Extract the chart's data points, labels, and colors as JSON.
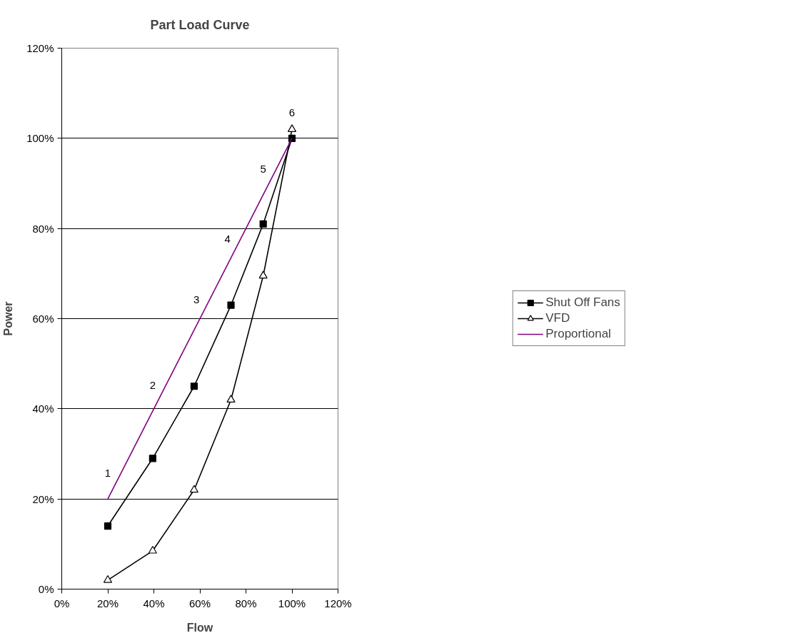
{
  "chart_data": {
    "type": "line",
    "title": "Part Load Curve",
    "xlabel": "Flow",
    "ylabel": "Power",
    "xlim": [
      0,
      120
    ],
    "ylim": [
      0,
      120
    ],
    "xticks": [
      {
        "value": 0,
        "label": "0%"
      },
      {
        "value": 20,
        "label": "20%"
      },
      {
        "value": 40,
        "label": "40%"
      },
      {
        "value": 60,
        "label": "60%"
      },
      {
        "value": 80,
        "label": "80%"
      },
      {
        "value": 100,
        "label": "100%"
      },
      {
        "value": 120,
        "label": "120%"
      }
    ],
    "yticks": [
      {
        "value": 0,
        "label": "0%"
      },
      {
        "value": 20,
        "label": "20%"
      },
      {
        "value": 40,
        "label": "40%"
      },
      {
        "value": 60,
        "label": "60%"
      },
      {
        "value": 80,
        "label": "80%"
      },
      {
        "value": 100,
        "label": "100%"
      },
      {
        "value": 120,
        "label": "120%"
      }
    ],
    "grid": "y",
    "legend": "right",
    "series": [
      {
        "name": "Shut Off Fans",
        "color": "#000000",
        "marker": "square",
        "x": [
          20,
          39.5,
          57.5,
          73.5,
          87.5,
          100
        ],
        "values": [
          14,
          29,
          45,
          63,
          81,
          100
        ]
      },
      {
        "name": "VFD",
        "color": "#000000",
        "marker": "triangle",
        "x": [
          20,
          39.5,
          57.5,
          73.5,
          87.5,
          100
        ],
        "values": [
          2,
          8.5,
          22,
          42,
          69.5,
          102
        ]
      },
      {
        "name": "Proportional",
        "color": "#800080",
        "marker": "none",
        "x": [
          20,
          100
        ],
        "values": [
          20,
          100
        ]
      }
    ],
    "annotations": [
      {
        "text": "1",
        "x": 20,
        "y": 20
      },
      {
        "text": "2",
        "x": 39.5,
        "y": 39.5
      },
      {
        "text": "3",
        "x": 58.5,
        "y": 58.5
      },
      {
        "text": "4",
        "x": 72,
        "y": 72
      },
      {
        "text": "5",
        "x": 87.5,
        "y": 87.5
      },
      {
        "text": "6",
        "x": 100,
        "y": 100
      }
    ]
  }
}
